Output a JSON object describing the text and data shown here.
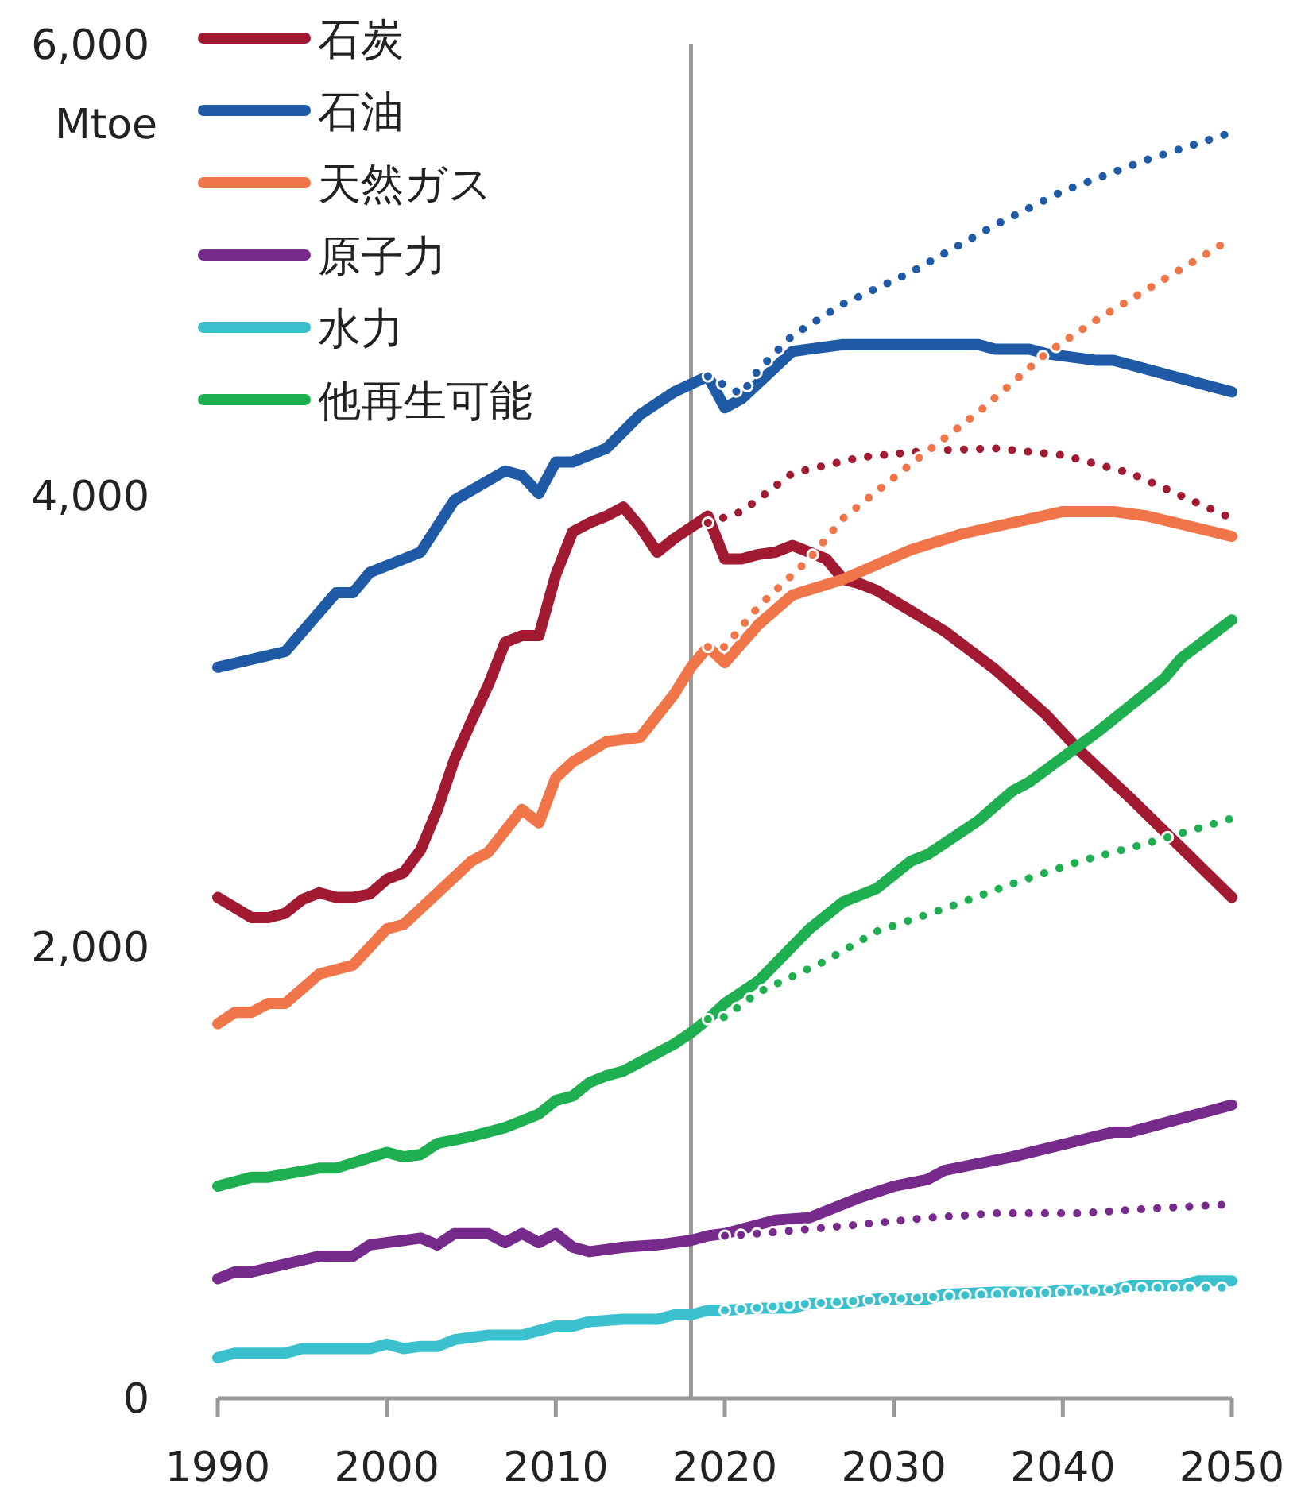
{
  "chart_data": {
    "type": "line",
    "ylabel": "Mtoe",
    "xlim": [
      1990,
      2050
    ],
    "ylim": [
      0,
      6000
    ],
    "xticks": [
      1990,
      2000,
      2010,
      2020,
      2030,
      2040,
      2050
    ],
    "yticks": [
      0,
      {
        "value": 2000,
        "label": "2,000"
      },
      {
        "value": 4000,
        "label": "4,000"
      },
      {
        "value": 6000,
        "label": "6,000"
      }
    ],
    "legend": "top left",
    "ref_lines": [
      {
        "axis": "x",
        "value": 2018,
        "color": "#999999"
      }
    ],
    "series": [
      {
        "name": "石炭",
        "color": "#a21a32",
        "x": [
          1990,
          1992,
          1993,
          1994,
          1995,
          1996,
          1997,
          1998,
          1999,
          2000,
          2001,
          2002,
          2003,
          2004,
          2005,
          2006,
          2007,
          2008,
          2009,
          2010,
          2011,
          2012,
          2013,
          2014,
          2015,
          2016,
          2017,
          2018,
          2019,
          2020,
          2021,
          2022,
          2023,
          2024,
          2025,
          2026,
          2027,
          2028,
          2029,
          2031,
          2033,
          2036,
          2039,
          2041,
          2044,
          2047,
          2050
        ],
        "values": [
          2220,
          2130,
          2130,
          2150,
          2210,
          2240,
          2220,
          2220,
          2235,
          2300,
          2330,
          2430,
          2610,
          2830,
          3000,
          3160,
          3350,
          3380,
          3380,
          3650,
          3840,
          3880,
          3910,
          3950,
          3860,
          3750,
          3810,
          3860,
          3910,
          3720,
          3720,
          3740,
          3750,
          3780,
          3750,
          3720,
          3630,
          3610,
          3580,
          3490,
          3400,
          3230,
          3030,
          2870,
          2660,
          2440,
          2220
        ]
      },
      {
        "name": "石油",
        "color": "#1f5aa6",
        "x": [
          1990,
          1994,
          1997,
          1998,
          1999,
          2002,
          2004,
          2007,
          2008,
          2009,
          2010,
          2011,
          2013,
          2015,
          2017,
          2019,
          2020,
          2021,
          2024,
          2025,
          2027,
          2035,
          2036,
          2038,
          2039,
          2042,
          2043,
          2050
        ],
        "values": [
          3240,
          3310,
          3570,
          3570,
          3660,
          3750,
          3980,
          4110,
          4090,
          4010,
          4150,
          4150,
          4210,
          4360,
          4460,
          4530,
          4390,
          4430,
          4640,
          4650,
          4670,
          4670,
          4650,
          4650,
          4630,
          4600,
          4600,
          4460
        ]
      },
      {
        "name": "天然ガス",
        "color": "#f07549",
        "x": [
          1990,
          1991,
          1992,
          1993,
          1994,
          1996,
          1998,
          2000,
          2001,
          2005,
          2006,
          2008,
          2009,
          2010,
          2011,
          2013,
          2015,
          2017,
          2018,
          2019,
          2020,
          2022,
          2024,
          2027,
          2031,
          2034,
          2040,
          2043,
          2045,
          2050
        ],
        "values": [
          1660,
          1710,
          1710,
          1750,
          1750,
          1880,
          1920,
          2080,
          2100,
          2380,
          2420,
          2610,
          2550,
          2750,
          2820,
          2910,
          2930,
          3120,
          3240,
          3330,
          3260,
          3430,
          3560,
          3630,
          3760,
          3830,
          3930,
          3930,
          3910,
          3820
        ]
      },
      {
        "name": "原子力",
        "color": "#762a8c",
        "x": [
          1990,
          1991,
          1992,
          1996,
          1998,
          1999,
          2001,
          2002,
          2003,
          2004,
          2006,
          2007,
          2008,
          2009,
          2010,
          2011,
          2012,
          2014,
          2016,
          2018,
          2019,
          2020,
          2023,
          2025,
          2026,
          2028,
          2030,
          2032,
          2033,
          2037,
          2043,
          2044,
          2050
        ],
        "values": [
          530,
          560,
          560,
          630,
          630,
          680,
          700,
          710,
          680,
          730,
          730,
          690,
          730,
          690,
          730,
          670,
          650,
          670,
          680,
          700,
          720,
          730,
          790,
          800,
          830,
          890,
          940,
          970,
          1010,
          1070,
          1180,
          1180,
          1300
        ]
      },
      {
        "name": "水力",
        "color": "#3bc1ce",
        "x": [
          1990,
          1991,
          1994,
          1995,
          1999,
          2000,
          2001,
          2002,
          2003,
          2004,
          2006,
          2008,
          2010,
          2011,
          2012,
          2014,
          2016,
          2017,
          2018,
          2019,
          2020,
          2022,
          2024,
          2025,
          2027,
          2029,
          2032,
          2033,
          2036,
          2039,
          2040,
          2043,
          2044,
          2047,
          2048,
          2050
        ],
        "values": [
          180,
          200,
          200,
          220,
          220,
          240,
          220,
          230,
          230,
          260,
          280,
          280,
          320,
          320,
          340,
          350,
          350,
          370,
          370,
          390,
          390,
          400,
          400,
          420,
          420,
          440,
          440,
          460,
          470,
          470,
          480,
          480,
          500,
          500,
          520,
          520
        ]
      },
      {
        "name": "他再生可能",
        "color": "#1eaf50",
        "x": [
          1990,
          1992,
          1993,
          1996,
          1997,
          2000,
          2001,
          2002,
          2003,
          2005,
          2007,
          2008,
          2009,
          2010,
          2011,
          2012,
          2013,
          2014,
          2016,
          2017,
          2018,
          2019,
          2020,
          2022,
          2025,
          2027,
          2029,
          2031,
          2032,
          2035,
          2037,
          2038,
          2042,
          2046,
          2047,
          2050
        ],
        "values": [
          940,
          980,
          980,
          1020,
          1020,
          1090,
          1070,
          1080,
          1130,
          1160,
          1200,
          1230,
          1260,
          1320,
          1340,
          1400,
          1430,
          1450,
          1530,
          1570,
          1620,
          1680,
          1750,
          1850,
          2080,
          2200,
          2260,
          2380,
          2410,
          2560,
          2690,
          2730,
          2950,
          3190,
          3280,
          3450
        ]
      },
      {
        "color": "#a21a32",
        "line_style": "dotted",
        "x": [
          2019,
          2021,
          2024,
          2028,
          2032,
          2036,
          2040,
          2044,
          2050
        ],
        "values": [
          3880,
          3930,
          4100,
          4170,
          4200,
          4210,
          4180,
          4100,
          3900
        ]
      },
      {
        "color": "#1f5aa6",
        "line_style": "dotted",
        "x": [
          2019,
          2021,
          2022,
          2024,
          2027,
          2031,
          2036,
          2040,
          2045,
          2050
        ],
        "values": [
          4530,
          4450,
          4560,
          4710,
          4850,
          4990,
          5200,
          5350,
          5490,
          5610
        ]
      },
      {
        "color": "#f07549",
        "line_style": "dotted",
        "x": [
          2019,
          2020,
          2022,
          2025,
          2027,
          2031,
          2035,
          2039,
          2042,
          2046,
          2050
        ],
        "values": [
          3330,
          3330,
          3510,
          3720,
          3900,
          4140,
          4370,
          4630,
          4780,
          4960,
          5140
        ]
      },
      {
        "color": "#762a8c",
        "line_style": "dotted",
        "x": [
          2020,
          2022,
          2025,
          2028,
          2032,
          2036,
          2041,
          2045,
          2050
        ],
        "values": [
          720,
          730,
          750,
          770,
          800,
          820,
          820,
          840,
          860
        ]
      },
      {
        "color": "#3bc1ce",
        "line_style": "dotted",
        "x": [
          2020,
          2025,
          2030,
          2035,
          2040,
          2045,
          2050
        ],
        "values": [
          390,
          420,
          440,
          460,
          470,
          490,
          490
        ]
      },
      {
        "color": "#1eaf50",
        "line_style": "dotted",
        "x": [
          2019,
          2020,
          2022,
          2026,
          2029,
          2033,
          2037,
          2041,
          2045,
          2050
        ],
        "values": [
          1680,
          1690,
          1800,
          1940,
          2070,
          2170,
          2280,
          2380,
          2460,
          2570
        ]
      }
    ]
  }
}
